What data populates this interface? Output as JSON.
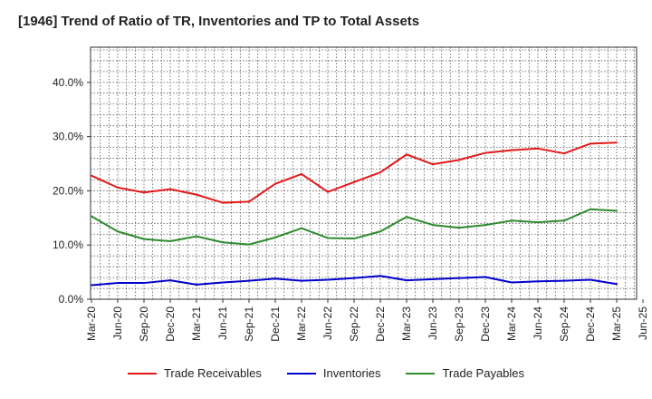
{
  "chart_data": {
    "type": "line",
    "title": "[1946]  Trend of Ratio of TR, Inventories and TP to Total Assets",
    "x_ticks": [
      "Mar-20",
      "Jun-20",
      "Sep-20",
      "Dec-20",
      "Mar-21",
      "Jun-21",
      "Sep-21",
      "Dec-21",
      "Mar-22",
      "Jun-22",
      "Sep-22",
      "Dec-22",
      "Mar-23",
      "Jun-23",
      "Sep-23",
      "Dec-23",
      "Mar-24",
      "Jun-24",
      "Sep-24",
      "Dec-24",
      "Mar-25",
      "Jun-25"
    ],
    "categories": [
      "Mar-20",
      "Jun-20",
      "Sep-20",
      "Dec-20",
      "Mar-21",
      "Jun-21",
      "Sep-21",
      "Dec-21",
      "Mar-22",
      "Jun-22",
      "Sep-22",
      "Dec-22",
      "Mar-23",
      "Jun-23",
      "Sep-23",
      "Dec-23",
      "Mar-24",
      "Jun-24",
      "Sep-24",
      "Dec-24",
      "Mar-25"
    ],
    "y_ticks": [
      "0.0%",
      "10.0%",
      "20.0%",
      "30.0%",
      "40.0%"
    ],
    "ylim": [
      0,
      46.5
    ],
    "series": [
      {
        "name": "Trade Receivables",
        "color": "#e31a1c",
        "values": [
          22.8,
          20.6,
          19.7,
          20.3,
          19.3,
          17.8,
          18.0,
          21.3,
          23.1,
          19.8,
          21.6,
          23.4,
          26.7,
          24.9,
          25.7,
          27.0,
          27.5,
          27.8,
          26.9,
          28.7,
          28.9
        ]
      },
      {
        "name": "Inventories",
        "color": "#0000cc",
        "values": [
          2.6,
          3.0,
          3.0,
          3.5,
          2.7,
          3.1,
          3.4,
          3.8,
          3.4,
          3.6,
          3.9,
          4.3,
          3.5,
          3.7,
          3.9,
          4.1,
          3.1,
          3.3,
          3.4,
          3.6,
          2.8
        ]
      },
      {
        "name": "Trade Payables",
        "color": "#2e8b2e",
        "values": [
          15.3,
          12.5,
          11.1,
          10.7,
          11.6,
          10.5,
          10.1,
          11.4,
          13.1,
          11.3,
          11.2,
          12.5,
          15.2,
          13.7,
          13.2,
          13.7,
          14.5,
          14.2,
          14.5,
          16.6,
          16.3
        ]
      }
    ]
  }
}
